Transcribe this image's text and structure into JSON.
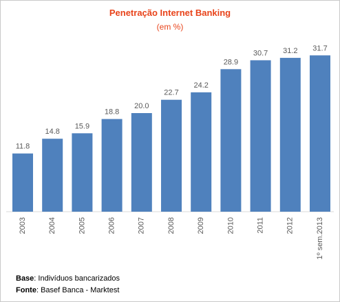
{
  "chart_data": {
    "type": "bar",
    "title": "Penetração Internet Banking",
    "subtitle": "(em %)",
    "categories": [
      "2003",
      "2004",
      "2005",
      "2006",
      "2007",
      "2008",
      "2009",
      "2010",
      "2011",
      "2012",
      "1º sem.2013"
    ],
    "values": [
      11.8,
      14.8,
      15.9,
      18.8,
      20.0,
      22.7,
      24.2,
      28.9,
      30.7,
      31.2,
      31.7
    ],
    "value_labels": [
      "11.8",
      "14.8",
      "15.9",
      "18.8",
      "20.0",
      "22.7",
      "24.2",
      "28.9",
      "30.7",
      "31.2",
      "31.7"
    ],
    "ylim": [
      0,
      33
    ],
    "grid": false,
    "legend": "none",
    "bar_color": "#4f81bd",
    "label_color": "#595959",
    "title_color": "#e8431a",
    "xlabel": "",
    "ylabel": ""
  },
  "footnote": {
    "base_label": "Base",
    "base_text": ": Indivíduos bancarizados",
    "source_label": "Fonte",
    "source_text": ": Basef Banca - Marktest"
  }
}
